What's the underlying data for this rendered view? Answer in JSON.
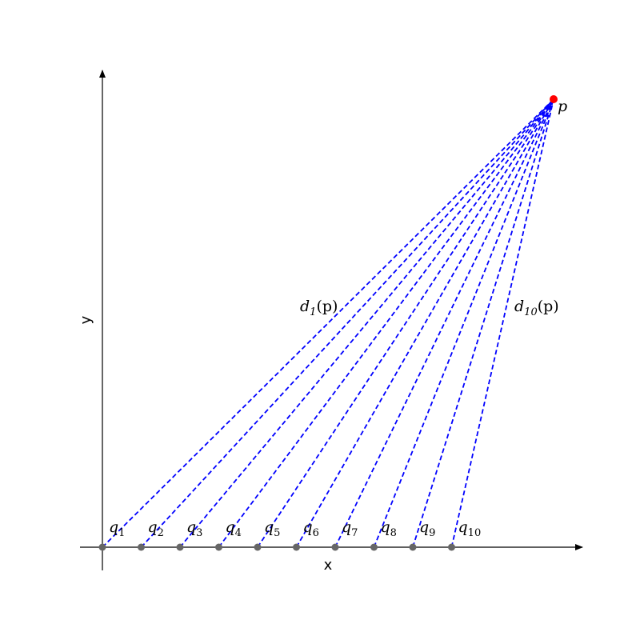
{
  "axes": {
    "xlabel": "x",
    "ylabel": "y"
  },
  "point_p": {
    "label": "p",
    "color": "#ff0000"
  },
  "points_q": {
    "symbol": "q",
    "color": "#666666",
    "subscripts": [
      "1",
      "2",
      "3",
      "4",
      "5",
      "6",
      "7",
      "8",
      "9",
      "10"
    ]
  },
  "distance_labels": {
    "first": {
      "symbol": "d",
      "subscript": "1",
      "arg": "(p)"
    },
    "last": {
      "symbol": "d",
      "subscript": "10",
      "arg": "(p)"
    }
  },
  "line_color": "#0000ff"
}
